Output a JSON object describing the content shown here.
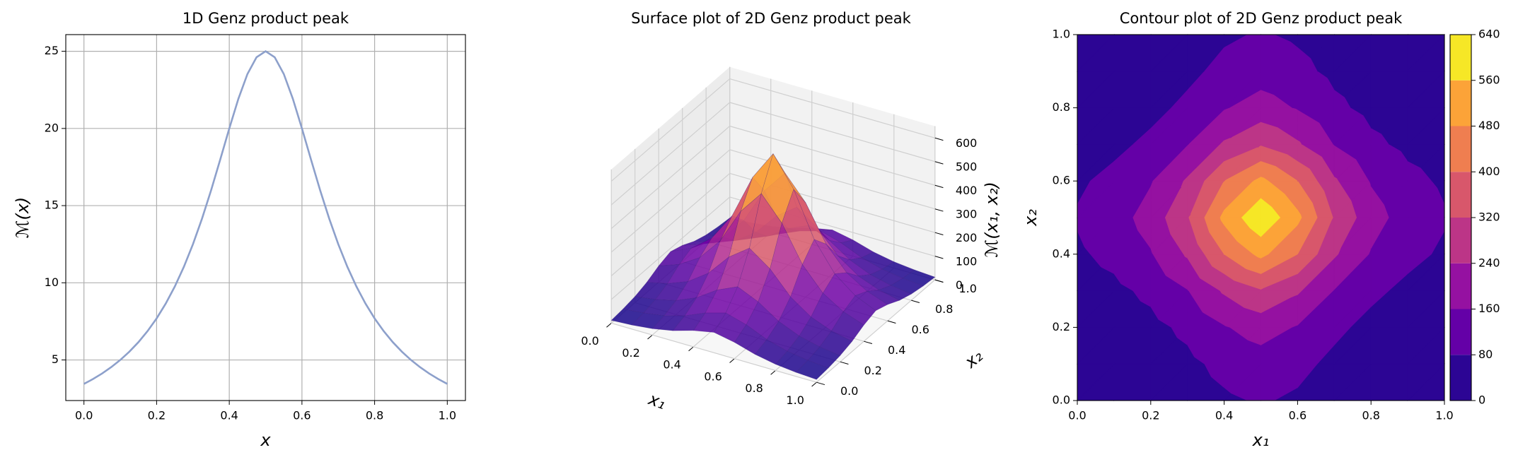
{
  "chart_data": [
    {
      "type": "line",
      "title": "1D Genz product peak",
      "xlabel": "x",
      "ylabel": "ℳ(x)",
      "x": [
        0,
        0.025,
        0.05,
        0.075,
        0.1,
        0.125,
        0.15,
        0.175,
        0.2,
        0.225,
        0.25,
        0.275,
        0.3,
        0.325,
        0.35,
        0.375,
        0.4,
        0.425,
        0.45,
        0.475,
        0.5,
        0.525,
        0.55,
        0.575,
        0.6,
        0.625,
        0.65,
        0.675,
        0.7,
        0.725,
        0.75,
        0.775,
        0.8,
        0.825,
        0.85,
        0.875,
        0.9,
        0.925,
        0.95,
        0.975,
        1
      ],
      "values": [
        3.448,
        3.765,
        4.124,
        4.533,
        5,
        5.536,
        6.154,
        6.867,
        7.692,
        8.649,
        9.756,
        11.034,
        12.5,
        14.159,
        16,
        17.978,
        20,
        21.918,
        23.529,
        24.615,
        25,
        24.615,
        23.529,
        21.918,
        20,
        17.978,
        16,
        14.159,
        12.5,
        11.034,
        9.756,
        8.649,
        7.692,
        6.867,
        6.154,
        5.536,
        5,
        4.533,
        4.124,
        3.765,
        3.448
      ],
      "color": "#8da0cb",
      "xlim": [
        -0.05,
        1.05
      ],
      "ylim": [
        2.37,
        26.08
      ],
      "xticks": [
        {
          "value": 0,
          "label": "0.0"
        },
        {
          "value": 0.2,
          "label": "0.2"
        },
        {
          "value": 0.4,
          "label": "0.4"
        },
        {
          "value": 0.6,
          "label": "0.6"
        },
        {
          "value": 0.8,
          "label": "0.8"
        },
        {
          "value": 1,
          "label": "1.0"
        }
      ],
      "yticks": [
        5,
        10,
        15,
        20,
        25
      ],
      "grid": true
    },
    {
      "type": "surface",
      "title": "Surface plot of 2D Genz product peak",
      "xlabel": "x₁",
      "ylabel": "x₂",
      "zlabel": "ℳ(x₁, x₂)",
      "x": [
        0,
        0.1,
        0.2,
        0.3,
        0.4,
        0.5,
        0.6,
        0.7,
        0.8,
        0.9,
        1
      ],
      "y": [
        0,
        0.1,
        0.2,
        0.3,
        0.4,
        0.5,
        0.6,
        0.7,
        0.8,
        0.9,
        1
      ],
      "z": [
        [
          11.89,
          17.24,
          26.52,
          43.1,
          68.96,
          86.2,
          68.96,
          43.1,
          26.52,
          17.24,
          11.89
        ],
        [
          17.24,
          25,
          38.46,
          62.5,
          100,
          125,
          100,
          62.5,
          38.46,
          25,
          17.24
        ],
        [
          26.52,
          38.46,
          59.17,
          96.15,
          153.8,
          192.3,
          153.8,
          96.15,
          59.17,
          38.46,
          26.52
        ],
        [
          43.1,
          62.5,
          96.15,
          156.3,
          250,
          312.5,
          250,
          156.3,
          96.15,
          62.5,
          43.1
        ],
        [
          68.96,
          100,
          153.8,
          250,
          400,
          500,
          400,
          250,
          153.8,
          100,
          68.96
        ],
        [
          86.2,
          125,
          192.3,
          312.5,
          500,
          625,
          500,
          312.5,
          192.3,
          125,
          86.2
        ],
        [
          68.96,
          100,
          153.8,
          250,
          400,
          500,
          400,
          250,
          153.8,
          100,
          68.96
        ],
        [
          43.1,
          62.5,
          96.15,
          156.3,
          250,
          312.5,
          250,
          156.3,
          96.15,
          62.5,
          43.1
        ],
        [
          26.52,
          38.46,
          59.17,
          96.15,
          153.8,
          192.3,
          153.8,
          96.15,
          59.17,
          38.46,
          26.52
        ],
        [
          17.24,
          25,
          38.46,
          62.5,
          100,
          125,
          100,
          62.5,
          38.46,
          25,
          17.24
        ],
        [
          11.89,
          17.24,
          26.52,
          43.1,
          68.96,
          86.2,
          68.96,
          43.1,
          26.52,
          17.24,
          11.89
        ]
      ],
      "xlim": [
        0,
        1
      ],
      "ylim": [
        0,
        1
      ],
      "zlim": [
        0,
        650
      ],
      "xticks": [
        {
          "value": 0,
          "label": "0.0"
        },
        {
          "value": 0.2,
          "label": "0.2"
        },
        {
          "value": 0.4,
          "label": "0.4"
        },
        {
          "value": 0.6,
          "label": "0.6"
        },
        {
          "value": 0.8,
          "label": "0.8"
        },
        {
          "value": 1,
          "label": "1.0"
        }
      ],
      "yticks": [
        {
          "value": 0,
          "label": "0.0"
        },
        {
          "value": 0.2,
          "label": "0.2"
        },
        {
          "value": 0.4,
          "label": "0.4"
        },
        {
          "value": 0.6,
          "label": "0.6"
        },
        {
          "value": 0.8,
          "label": "0.8"
        },
        {
          "value": 1,
          "label": "1.0"
        }
      ],
      "zticks": [
        0,
        100,
        200,
        300,
        400,
        500,
        600
      ],
      "colormap": [
        "#0d0887",
        "#6a00a8",
        "#b12a90",
        "#e16462",
        "#fca636",
        "#f0f921"
      ]
    },
    {
      "type": "contour",
      "title": "Contour plot of 2D Genz product peak",
      "xlabel": "x₁",
      "ylabel": "x₂",
      "x": [
        0,
        0.1,
        0.2,
        0.3,
        0.4,
        0.5,
        0.6,
        0.7,
        0.8,
        0.9,
        1
      ],
      "y": [
        0,
        0.1,
        0.2,
        0.3,
        0.4,
        0.5,
        0.6,
        0.7,
        0.8,
        0.9,
        1
      ],
      "z": [
        [
          11.89,
          17.24,
          26.52,
          43.1,
          68.96,
          86.2,
          68.96,
          43.1,
          26.52,
          17.24,
          11.89
        ],
        [
          17.24,
          25,
          38.46,
          62.5,
          100,
          125,
          100,
          62.5,
          38.46,
          25,
          17.24
        ],
        [
          26.52,
          38.46,
          59.17,
          96.15,
          153.8,
          192.3,
          153.8,
          96.15,
          59.17,
          38.46,
          26.52
        ],
        [
          43.1,
          62.5,
          96.15,
          156.3,
          250,
          312.5,
          250,
          156.3,
          96.15,
          62.5,
          43.1
        ],
        [
          68.96,
          100,
          153.8,
          250,
          400,
          500,
          400,
          250,
          153.8,
          100,
          68.96
        ],
        [
          86.2,
          125,
          192.3,
          312.5,
          500,
          625,
          500,
          312.5,
          192.3,
          125,
          86.2
        ],
        [
          68.96,
          100,
          153.8,
          250,
          400,
          500,
          400,
          250,
          153.8,
          100,
          68.96
        ],
        [
          43.1,
          62.5,
          96.15,
          156.3,
          250,
          312.5,
          250,
          156.3,
          96.15,
          62.5,
          43.1
        ],
        [
          26.52,
          38.46,
          59.17,
          96.15,
          153.8,
          192.3,
          153.8,
          96.15,
          59.17,
          38.46,
          26.52
        ],
        [
          17.24,
          25,
          38.46,
          62.5,
          100,
          125,
          100,
          62.5,
          38.46,
          25,
          17.24
        ],
        [
          11.89,
          17.24,
          26.52,
          43.1,
          68.96,
          86.2,
          68.96,
          43.1,
          26.52,
          17.24,
          11.89
        ]
      ],
      "xlim": [
        0,
        1
      ],
      "ylim": [
        0,
        1
      ],
      "xticks": [
        {
          "value": 0,
          "label": "0.0"
        },
        {
          "value": 0.2,
          "label": "0.2"
        },
        {
          "value": 0.4,
          "label": "0.4"
        },
        {
          "value": 0.6,
          "label": "0.6"
        },
        {
          "value": 0.8,
          "label": "0.8"
        },
        {
          "value": 1,
          "label": "1.0"
        }
      ],
      "yticks": [
        {
          "value": 0,
          "label": "0.0"
        },
        {
          "value": 0.2,
          "label": "0.2"
        },
        {
          "value": 0.4,
          "label": "0.4"
        },
        {
          "value": 0.6,
          "label": "0.6"
        },
        {
          "value": 0.8,
          "label": "0.8"
        },
        {
          "value": 1,
          "label": "1.0"
        }
      ],
      "levels": [
        0,
        80,
        160,
        240,
        320,
        400,
        480,
        560,
        640
      ],
      "colors": [
        "#2c0594",
        "#6400a7",
        "#9511a1",
        "#bc3587",
        "#d8576b",
        "#ef7e50",
        "#fca338",
        "#f6e726"
      ]
    }
  ]
}
